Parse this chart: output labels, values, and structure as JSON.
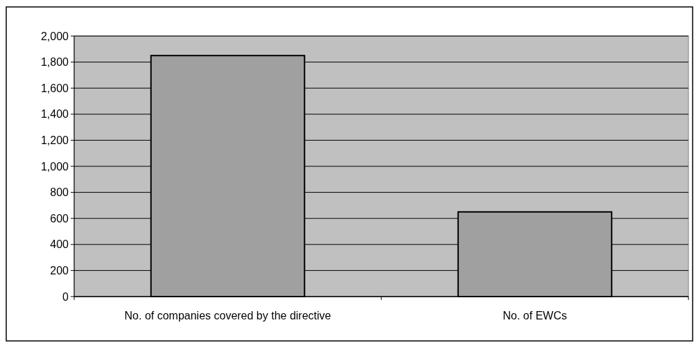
{
  "chart_data": {
    "type": "bar",
    "categories": [
      "No. of companies covered by the directive",
      "No. of EWCs"
    ],
    "values": [
      1850,
      650
    ],
    "color": "#a0a0a0",
    "ylim": [
      0,
      2000
    ],
    "yticks": [
      {
        "value": 0,
        "label": "0"
      },
      {
        "value": 200,
        "label": "200"
      },
      {
        "value": 400,
        "label": "400"
      },
      {
        "value": 600,
        "label": "600"
      },
      {
        "value": 800,
        "label": "800"
      },
      {
        "value": 1000,
        "label": "1,000"
      },
      {
        "value": 1200,
        "label": "1,200"
      },
      {
        "value": 1400,
        "label": "1,400"
      },
      {
        "value": 1600,
        "label": "1,600"
      },
      {
        "value": 1800,
        "label": "1,800"
      },
      {
        "value": 2000,
        "label": "2,000"
      }
    ],
    "grid": "y"
  }
}
